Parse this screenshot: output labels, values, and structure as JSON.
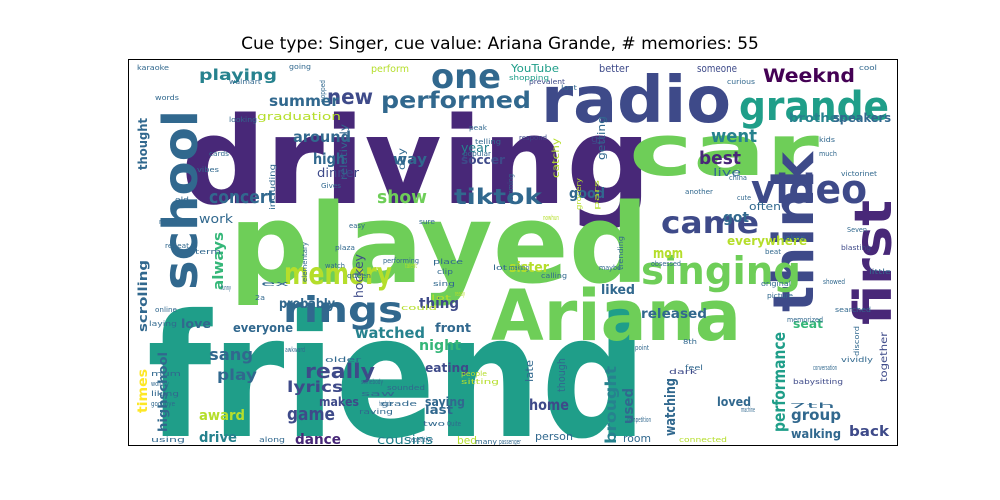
{
  "title": "Cue type: Singer, cue value: Ariana Grande, # memories: 55",
  "palette": [
    "#440154",
    "#482878",
    "#3e4a89",
    "#31688e",
    "#26828e",
    "#1f9e89",
    "#35b779",
    "#6ece58",
    "#b5de2b",
    "#fde725"
  ],
  "words": [
    {
      "text": "friend",
      "color": "#1f9e89"
    },
    {
      "text": "driving",
      "color": "#482878"
    },
    {
      "text": "played",
      "color": "#6ece58"
    },
    {
      "text": "radio",
      "color": "#3e4a89"
    },
    {
      "text": "car",
      "color": "#6ece58"
    },
    {
      "text": "Ariana",
      "color": "#6ece58"
    },
    {
      "text": "think",
      "color": "#3e4a89"
    },
    {
      "text": "first",
      "color": "#482878"
    },
    {
      "text": "school",
      "color": "#31688e"
    },
    {
      "text": "grande",
      "color": "#1f9e89"
    },
    {
      "text": "video",
      "color": "#3e4a89"
    },
    {
      "text": "singing",
      "color": "#6ece58"
    },
    {
      "text": "rings",
      "color": "#31688e"
    },
    {
      "text": "one",
      "color": "#31688e"
    },
    {
      "text": "came",
      "color": "#3e4a89"
    },
    {
      "text": "memory",
      "color": "#b5de2b"
    },
    {
      "text": "performed",
      "color": "#31688e"
    },
    {
      "text": "tiktok",
      "color": "#31688e"
    },
    {
      "text": "Weeknd",
      "color": "#440154"
    },
    {
      "text": "new",
      "color": "#3e4a89"
    },
    {
      "text": "performance",
      "color": "#1f9e89"
    },
    {
      "text": "concert",
      "color": "#31688e"
    },
    {
      "text": "show",
      "color": "#6ece58"
    },
    {
      "text": "really",
      "color": "#3e4a89"
    },
    {
      "text": "went",
      "color": "#26828e"
    },
    {
      "text": "best",
      "color": "#482878"
    },
    {
      "text": "game",
      "color": "#3e4a89"
    },
    {
      "text": "sang",
      "color": "#31688e"
    },
    {
      "text": "summer",
      "color": "#31688e"
    },
    {
      "text": "playing",
      "color": "#26828e"
    },
    {
      "text": "around",
      "color": "#31688e"
    },
    {
      "text": "high",
      "color": "#31688e"
    },
    {
      "text": "brought",
      "color": "#26828e"
    },
    {
      "text": "group",
      "color": "#31688e"
    },
    {
      "text": "watched",
      "color": "#26828e"
    },
    {
      "text": "lyrics",
      "color": "#3e4a89"
    },
    {
      "text": "play",
      "color": "#31688e"
    },
    {
      "text": "home",
      "color": "#3e4a89"
    },
    {
      "text": "dance",
      "color": "#482878"
    },
    {
      "text": "drive",
      "color": "#26828e"
    },
    {
      "text": "award",
      "color": "#b5de2b"
    },
    {
      "text": "good",
      "color": "#31688e"
    },
    {
      "text": "way",
      "color": "#31688e"
    },
    {
      "text": "got",
      "color": "#31688e"
    },
    {
      "text": "mom",
      "color": "#b5de2b"
    },
    {
      "text": "sister",
      "color": "#b5de2b"
    },
    {
      "text": "night",
      "color": "#35b779"
    },
    {
      "text": "back",
      "color": "#3e4a89"
    },
    {
      "text": "thing",
      "color": "#3e4a89"
    },
    {
      "text": "probably",
      "color": "#31688e"
    },
    {
      "text": "always",
      "color": "#35b779"
    },
    {
      "text": "used",
      "color": "#31688e"
    },
    {
      "text": "watching",
      "color": "#31688e"
    },
    {
      "text": "everywhere",
      "color": "#b5de2b"
    },
    {
      "text": "liked",
      "color": "#31688e"
    },
    {
      "text": "released",
      "color": "#31688e"
    },
    {
      "text": "scrolling",
      "color": "#31688e"
    },
    {
      "text": "thought",
      "color": "#31688e"
    },
    {
      "text": "times",
      "color": "#fde725"
    },
    {
      "text": "highschool",
      "color": "#31688e"
    },
    {
      "text": "saying",
      "color": "#31688e"
    },
    {
      "text": "makes",
      "color": "#3e4a89"
    },
    {
      "text": "eating",
      "color": "#3e4a89"
    },
    {
      "text": "everyone",
      "color": "#31688e"
    },
    {
      "text": "seat",
      "color": "#35b779"
    },
    {
      "text": "front",
      "color": "#31688e"
    },
    {
      "text": "last",
      "color": "#31688e"
    },
    {
      "text": "loved",
      "color": "#31688e"
    },
    {
      "text": "walking",
      "color": "#31688e"
    },
    {
      "text": "love",
      "color": "#31688e"
    },
    {
      "text": "graduation",
      "color": "#b5de2b"
    },
    {
      "text": "brother",
      "color": "#26828e"
    },
    {
      "text": "speakers",
      "color": "#31688e"
    },
    {
      "text": "soccer",
      "color": "#3e4a89"
    },
    {
      "text": "year",
      "color": "#26828e"
    },
    {
      "text": "hockey",
      "color": "#3e4a89"
    },
    {
      "text": "cousins",
      "color": "#26828e"
    },
    {
      "text": "work",
      "color": "#31688e"
    },
    {
      "text": "dinner",
      "color": "#3e4a89"
    },
    {
      "text": "often",
      "color": "#31688e"
    },
    {
      "text": "live",
      "color": "#31688e"
    },
    {
      "text": "getting",
      "color": "#31688e"
    },
    {
      "text": "YouTube",
      "color": "#1f9e89"
    },
    {
      "text": "perform",
      "color": "#b5de2b"
    },
    {
      "text": "better",
      "color": "#3e4a89"
    },
    {
      "text": "someone",
      "color": "#3e4a89"
    },
    {
      "text": "person",
      "color": "#31688e"
    },
    {
      "text": "room",
      "color": "#31688e"
    },
    {
      "text": "late",
      "color": "#31688e"
    },
    {
      "text": "though",
      "color": "#31688e"
    },
    {
      "text": "bed",
      "color": "#b5de2b"
    },
    {
      "text": "relatively",
      "color": "#31688e"
    },
    {
      "text": "catchy",
      "color": "#b5de2b"
    },
    {
      "text": "day",
      "color": "#31688e"
    },
    {
      "text": "go",
      "color": "#3e4a89"
    },
    {
      "text": "together",
      "color": "#3e4a89"
    },
    {
      "text": "including",
      "color": "#31688e"
    },
    {
      "text": "karaoke",
      "color": "#31688e"
    },
    {
      "text": "going",
      "color": "#31688e"
    },
    {
      "text": "words",
      "color": "#31688e"
    },
    {
      "text": "looking",
      "color": "#31688e"
    },
    {
      "text": "walmart",
      "color": "#31688e"
    },
    {
      "text": "prevalent",
      "color": "#3e4a89"
    },
    {
      "text": "shopping",
      "color": "#1f9e89"
    },
    {
      "text": "lost",
      "color": "#31688e"
    },
    {
      "text": "cool",
      "color": "#31688e"
    },
    {
      "text": "curious",
      "color": "#31688e"
    },
    {
      "text": "peak",
      "color": "#31688e"
    },
    {
      "text": "vibes",
      "color": "#31688e"
    },
    {
      "text": "cards",
      "color": "#31688e"
    },
    {
      "text": "Gives",
      "color": "#31688e"
    },
    {
      "text": "telling",
      "color": "#31688e"
    },
    {
      "text": "respond",
      "color": "#3e4a89"
    },
    {
      "text": "popular",
      "color": "#31688e"
    },
    {
      "text": "kids",
      "color": "#31688e"
    },
    {
      "text": "much",
      "color": "#31688e"
    },
    {
      "text": "victorinet",
      "color": "#31688e"
    },
    {
      "text": "another",
      "color": "#31688e"
    },
    {
      "text": "china",
      "color": "#31688e"
    },
    {
      "text": "beat",
      "color": "#31688e"
    },
    {
      "text": "jokes",
      "color": "#31688e"
    },
    {
      "text": "Seven",
      "color": "#31688e"
    },
    {
      "text": "cute",
      "color": "#31688e"
    },
    {
      "text": "blasting",
      "color": "#3e4a89"
    },
    {
      "text": "made",
      "color": "#31688e"
    },
    {
      "text": "old",
      "color": "#31688e"
    },
    {
      "text": "repeat",
      "color": "#31688e"
    },
    {
      "text": "elementary",
      "color": "#31688e"
    },
    {
      "text": "plaza",
      "color": "#31688e"
    },
    {
      "text": "easy",
      "color": "#31688e"
    },
    {
      "text": "sure",
      "color": "#31688e"
    },
    {
      "text": "queen",
      "color": "#31688e"
    },
    {
      "text": "watch",
      "color": "#31688e"
    },
    {
      "text": "performing",
      "color": "#31688e"
    },
    {
      "text": "clip",
      "color": "#31688e"
    },
    {
      "text": "calling",
      "color": "#31688e"
    },
    {
      "text": "maybe",
      "color": "#31688e"
    },
    {
      "text": "trending",
      "color": "#31688e"
    },
    {
      "text": "obsessed",
      "color": "#31688e"
    },
    {
      "text": "original",
      "color": "#31688e"
    },
    {
      "text": "showed",
      "color": "#31688e"
    },
    {
      "text": "little",
      "color": "#31688e"
    },
    {
      "text": "picture",
      "color": "#31688e"
    },
    {
      "text": "memorized",
      "color": "#31688e"
    },
    {
      "text": "searched",
      "color": "#31688e"
    },
    {
      "text": "discord",
      "color": "#31688e"
    },
    {
      "text": "vividly",
      "color": "#31688e"
    },
    {
      "text": "conversation",
      "color": "#31688e"
    },
    {
      "text": "babysitting",
      "color": "#3e4a89"
    },
    {
      "text": "7th",
      "color": "#31688e"
    },
    {
      "text": "machine",
      "color": "#31688e"
    },
    {
      "text": "dark",
      "color": "#3e4a89"
    },
    {
      "text": "feel",
      "color": "#31688e"
    },
    {
      "text": "8th",
      "color": "#31688e"
    },
    {
      "text": "point",
      "color": "#31688e"
    },
    {
      "text": "making",
      "color": "#31688e"
    },
    {
      "text": "place",
      "color": "#31688e"
    },
    {
      "text": "sing",
      "color": "#31688e"
    },
    {
      "text": "lot",
      "color": "#31688e"
    },
    {
      "text": "talent",
      "color": "#b5de2b"
    },
    {
      "text": "ex",
      "color": "#31688e"
    },
    {
      "text": "2a",
      "color": "#31688e"
    },
    {
      "text": "funny",
      "color": "#31688e"
    },
    {
      "text": "online",
      "color": "#31688e"
    },
    {
      "text": "laying",
      "color": "#31688e"
    },
    {
      "text": "term",
      "color": "#31688e"
    },
    {
      "text": "awkward",
      "color": "#31688e"
    },
    {
      "text": "older",
      "color": "#31688e"
    },
    {
      "text": "mum",
      "color": "#31688e"
    },
    {
      "text": "wordsy",
      "color": "#31688e"
    },
    {
      "text": "liking",
      "color": "#31688e"
    },
    {
      "text": "goodbye",
      "color": "#31688e"
    },
    {
      "text": "using",
      "color": "#31688e"
    },
    {
      "text": "somebody",
      "color": "#31688e"
    },
    {
      "text": "sounded",
      "color": "#31688e"
    },
    {
      "text": "saw",
      "color": "#31688e"
    },
    {
      "text": "headache",
      "color": "#31688e"
    },
    {
      "text": "raving",
      "color": "#31688e"
    },
    {
      "text": "along",
      "color": "#31688e"
    },
    {
      "text": "repetitive",
      "color": "#31688e"
    },
    {
      "text": "grade",
      "color": "#31688e"
    },
    {
      "text": "two",
      "color": "#31688e"
    },
    {
      "text": "Quite",
      "color": "#31688e"
    },
    {
      "text": "many",
      "color": "#31688e"
    },
    {
      "text": "passenger",
      "color": "#31688e"
    },
    {
      "text": "sitting",
      "color": "#b5de2b"
    },
    {
      "text": "people",
      "color": "#b5de2b"
    },
    {
      "text": "competition",
      "color": "#31688e"
    },
    {
      "text": "connected",
      "color": "#b5de2b"
    },
    {
      "text": "could",
      "color": "#b5de2b"
    },
    {
      "text": "lot",
      "color": "#b5de2b"
    },
    {
      "text": "ready",
      "color": "#b5de2b"
    },
    {
      "text": "popped",
      "color": "#31688e"
    },
    {
      "text": "jamming",
      "color": "#31688e"
    },
    {
      "text": "grocery",
      "color": "#b5de2b"
    },
    {
      "text": "pars",
      "color": "#b5de2b"
    },
    {
      "text": "nowhun",
      "color": "#b5de2b"
    }
  ]
}
